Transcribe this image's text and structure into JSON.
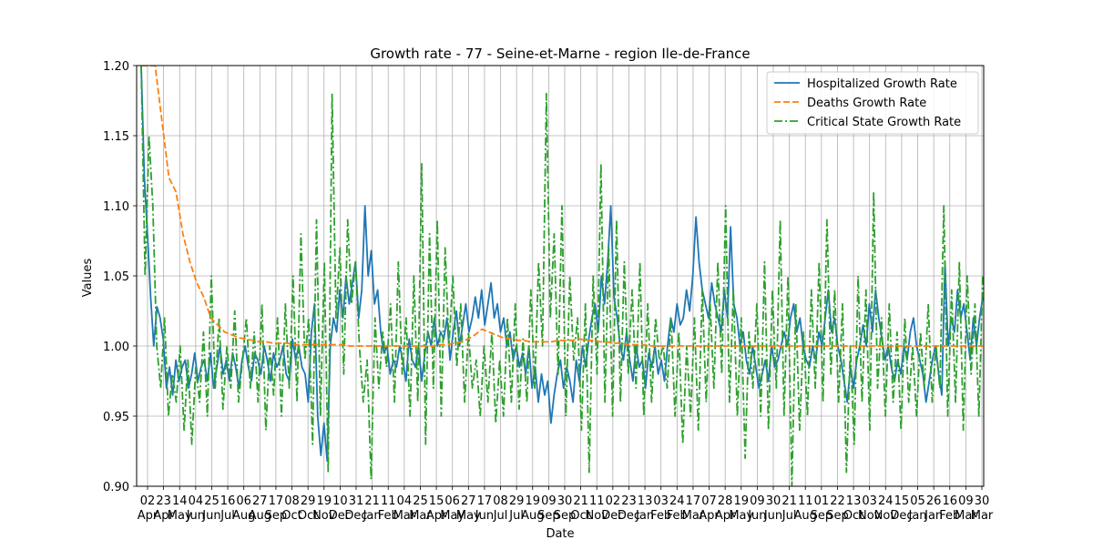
{
  "chart_data": {
    "type": "line",
    "title": "Growth rate - 77 - Seine-et-Marne - region Ile-de-France",
    "xlabel": "Date",
    "ylabel": "Values",
    "ylim": [
      0.9,
      1.2
    ],
    "yticks": [
      0.9,
      0.95,
      1.0,
      1.05,
      1.1,
      1.15,
      1.2
    ],
    "grid": true,
    "legend_position": "top-right",
    "x_tick_labels": [
      {
        "day": "02",
        "month": "Apr"
      },
      {
        "day": "23",
        "month": "Apr"
      },
      {
        "day": "14",
        "month": "May"
      },
      {
        "day": "04",
        "month": "Jun"
      },
      {
        "day": "25",
        "month": "Jun"
      },
      {
        "day": "16",
        "month": "Jul"
      },
      {
        "day": "06",
        "month": "Aug"
      },
      {
        "day": "27",
        "month": "Aug"
      },
      {
        "day": "17",
        "month": "Sep"
      },
      {
        "day": "08",
        "month": "Oct"
      },
      {
        "day": "29",
        "month": "Oct"
      },
      {
        "day": "19",
        "month": "Nov"
      },
      {
        "day": "10",
        "month": "Dec"
      },
      {
        "day": "31",
        "month": "Dec"
      },
      {
        "day": "21",
        "month": "Jan"
      },
      {
        "day": "11",
        "month": "Feb"
      },
      {
        "day": "04",
        "month": "Mar"
      },
      {
        "day": "25",
        "month": "Mar"
      },
      {
        "day": "15",
        "month": "Apr"
      },
      {
        "day": "06",
        "month": "May"
      },
      {
        "day": "27",
        "month": "May"
      },
      {
        "day": "17",
        "month": "Jun"
      },
      {
        "day": "08",
        "month": "Jul"
      },
      {
        "day": "29",
        "month": "Jul"
      },
      {
        "day": "19",
        "month": "Aug"
      },
      {
        "day": "09",
        "month": "Sep"
      },
      {
        "day": "30",
        "month": "Sep"
      },
      {
        "day": "21",
        "month": "Oct"
      },
      {
        "day": "11",
        "month": "Nov"
      },
      {
        "day": "02",
        "month": "Dec"
      },
      {
        "day": "23",
        "month": "Dec"
      },
      {
        "day": "13",
        "month": "Jan"
      },
      {
        "day": "03",
        "month": "Feb"
      },
      {
        "day": "24",
        "month": "Feb"
      },
      {
        "day": "17",
        "month": "Mar"
      },
      {
        "day": "07",
        "month": "Apr"
      },
      {
        "day": "28",
        "month": "Apr"
      },
      {
        "day": "19",
        "month": "May"
      },
      {
        "day": "09",
        "month": "Jun"
      },
      {
        "day": "30",
        "month": "Jun"
      },
      {
        "day": "21",
        "month": "Jul"
      },
      {
        "day": "11",
        "month": "Aug"
      },
      {
        "day": "01",
        "month": "Sep"
      },
      {
        "day": "22",
        "month": "Sep"
      },
      {
        "day": "13",
        "month": "Oct"
      },
      {
        "day": "03",
        "month": "Nov"
      },
      {
        "day": "24",
        "month": "Nov"
      },
      {
        "day": "15",
        "month": "Dec"
      },
      {
        "day": "05",
        "month": "Jan"
      },
      {
        "day": "26",
        "month": "Jan"
      },
      {
        "day": "16",
        "month": "Feb"
      },
      {
        "day": "09",
        "month": "Mar"
      },
      {
        "day": "30",
        "month": "Mar"
      }
    ],
    "series": [
      {
        "name": "Hospitalized Growth Rate",
        "color": "#1f77b4",
        "style": "solid",
        "values": [
          1.2,
          1.12,
          1.08,
          1.035,
          1.0,
          1.028,
          1.02,
          1.005,
          0.97,
          0.985,
          0.965,
          0.99,
          0.975,
          0.985,
          0.99,
          0.97,
          0.98,
          0.995,
          0.975,
          0.985,
          0.99,
          0.975,
          0.995,
          0.97,
          0.985,
          1.0,
          0.98,
          0.99,
          0.975,
          0.995,
          0.985,
          0.97,
          0.99,
          1.0,
          0.985,
          0.975,
          0.995,
          0.99,
          0.98,
          1.0,
          0.99,
          0.975,
          0.995,
          0.985,
          0.99,
          1.0,
          0.98,
          0.975,
          1.005,
          0.99,
          1.0,
          0.985,
          0.98,
          0.96,
          1.01,
          1.03,
          0.95,
          0.922,
          0.945,
          0.918,
          1.0,
          1.02,
          1.01,
          1.04,
          1.02,
          1.05,
          1.03,
          1.045,
          1.06,
          1.02,
          1.04,
          1.1,
          1.05,
          1.068,
          1.03,
          1.04,
          1.01,
          0.995,
          1.0,
          0.98,
          0.99,
          0.985,
          1.0,
          0.99,
          0.975,
          1.005,
          0.99,
          0.985,
          1.0,
          0.975,
          0.995,
          1.01,
          1.0,
          1.02,
          1.0,
          1.01,
          1.005,
          1.02,
          0.99,
          1.01,
          1.025,
          1.0,
          1.015,
          1.03,
          1.01,
          1.02,
          1.035,
          1.02,
          1.04,
          1.015,
          1.03,
          1.045,
          1.02,
          1.03,
          1.01,
          1.02,
          1.0,
          1.01,
          0.99,
          1.0,
          0.985,
          0.995,
          0.98,
          1.0,
          0.97,
          0.985,
          0.96,
          0.98,
          0.965,
          0.975,
          0.945,
          0.965,
          0.98,
          0.99,
          0.97,
          0.985,
          0.975,
          0.96,
          0.99,
          0.975,
          1.0,
          0.985,
          1.005,
          1.02,
          1.03,
          1.01,
          1.05,
          1.03,
          1.06,
          1.1,
          1.035,
          1.02,
          1.0,
          0.99,
          1.01,
          0.99,
          0.975,
          1.0,
          0.985,
          0.99,
          0.97,
          0.995,
          0.985,
          1.0,
          0.98,
          0.99,
          0.975,
          1.0,
          1.02,
          1.01,
          1.03,
          1.015,
          1.02,
          1.04,
          1.025,
          1.05,
          1.092,
          1.06,
          1.04,
          1.03,
          1.02,
          1.045,
          1.03,
          1.02,
          1.01,
          1.04,
          1.02,
          1.085,
          1.03,
          1.02,
          1.0,
          1.01,
          0.99,
          0.98,
          1.0,
          0.985,
          0.97,
          0.98,
          0.99,
          0.975,
          1.0,
          0.985,
          0.99,
          1.0,
          1.01,
          1.0,
          1.02,
          1.03,
          1.01,
          1.02,
          1.0,
          0.99,
          0.985,
          1.0,
          0.99,
          1.01,
          1.0,
          1.02,
          1.04,
          1.01,
          1.02,
          1.0,
          0.99,
          0.975,
          0.96,
          0.985,
          0.97,
          0.99,
          1.0,
          1.015,
          1.0,
          1.03,
          1.01,
          1.04,
          1.02,
          1.005,
          0.99,
          1.0,
          0.985,
          0.975,
          0.99,
          0.98,
          1.0,
          0.99,
          1.01,
          1.02,
          1.0,
          0.99,
          0.98,
          0.96,
          0.975,
          0.99,
          1.0,
          0.98,
          0.965,
          1.06,
          1.0,
          1.02,
          1.01,
          1.04,
          1.02,
          1.03,
          1.01,
          0.99,
          1.02,
          1.0,
          1.02,
          1.035
        ]
      },
      {
        "name": "Deaths Growth Rate",
        "color": "#ff7f0e",
        "style": "dashed",
        "values": [
          1.2,
          1.2,
          1.2,
          1.16,
          1.12,
          1.11,
          1.08,
          1.06,
          1.045,
          1.035,
          1.02,
          1.015,
          1.01,
          1.008,
          1.006,
          1.005,
          1.004,
          1.003,
          1.003,
          1.002,
          1.002,
          1.002,
          1.001,
          1.001,
          1.001,
          1.001,
          1.001,
          1.001,
          1.001,
          1.001,
          1.0,
          1.0,
          1.0,
          1.0,
          1.0,
          1.0,
          1.0,
          1.0,
          1.0,
          1.0,
          1.0,
          1.0,
          1.0,
          1.001,
          1.001,
          1.002,
          1.003,
          1.005,
          1.008,
          1.012,
          1.01,
          1.008,
          1.006,
          1.005,
          1.004,
          1.004,
          1.003,
          1.003,
          1.003,
          1.003,
          1.004,
          1.004,
          1.004,
          1.005,
          1.004,
          1.004,
          1.003,
          1.003,
          1.002,
          1.002,
          1.001,
          1.001,
          1.001,
          1.0,
          1.0,
          1.0,
          1.0,
          1.0,
          1.0,
          1.0,
          1.0,
          1.0,
          1.0,
          1.0,
          1.0,
          1.0,
          1.0,
          1.0,
          1.0,
          1.0,
          1.0,
          1.0,
          1.0,
          1.0,
          1.0,
          1.0,
          1.0,
          1.0,
          1.0,
          1.0,
          1.0,
          1.0,
          1.0,
          1.0,
          1.0,
          1.0,
          1.0,
          1.0,
          1.0,
          1.0,
          1.0,
          1.0,
          1.0,
          1.0,
          1.0,
          1.0,
          1.0,
          1.0,
          1.0,
          1.0,
          1.0,
          1.0
        ]
      },
      {
        "name": "Critical State Growth Rate",
        "color": "#2ca02c",
        "style": "dashdot",
        "values": [
          1.2,
          1.05,
          1.15,
          1.1,
          1.0,
          0.97,
          1.02,
          0.95,
          0.98,
          0.96,
          1.0,
          0.94,
          0.99,
          0.93,
          0.985,
          0.96,
          1.01,
          0.95,
          1.05,
          0.97,
          1.02,
          0.955,
          1.0,
          0.97,
          1.025,
          0.96,
          0.99,
          1.02,
          0.97,
          1.01,
          0.96,
          1.03,
          0.94,
          1.0,
          0.965,
          1.02,
          0.95,
          1.03,
          0.97,
          1.05,
          0.96,
          1.08,
          0.99,
          1.02,
          0.93,
          1.09,
          0.95,
          1.06,
          0.91,
          1.18,
          1.02,
          1.07,
          0.98,
          1.09,
          1.03,
          1.06,
          1.0,
          0.96,
          0.99,
          0.905,
          1.02,
          0.97,
          1.01,
          0.985,
          1.03,
          0.96,
          1.06,
          0.98,
          1.02,
          0.95,
          1.05,
          0.96,
          1.13,
          0.93,
          1.08,
          0.97,
          1.09,
          0.95,
          1.07,
          1.0,
          1.05,
          0.985,
          1.03,
          0.96,
          1.01,
          0.97,
          0.99,
          0.95,
          1.0,
          0.96,
          1.01,
          0.945,
          0.99,
          0.95,
          1.02,
          0.96,
          1.03,
          0.955,
          1.005,
          0.96,
          1.04,
          0.97,
          1.06,
          1.0,
          1.18,
          1.02,
          1.08,
          0.98,
          1.1,
          0.95,
          1.05,
          0.99,
          1.02,
          0.94,
          1.03,
          0.91,
          1.05,
          0.98,
          1.13,
          0.96,
          1.07,
          0.95,
          1.09,
          0.96,
          1.06,
          0.98,
          1.04,
          0.97,
          1.06,
          0.95,
          1.03,
          0.96,
          1.02,
          0.99,
          1.0,
          0.97,
          1.02,
          0.95,
          1.01,
          0.93,
          1.0,
          0.95,
          1.02,
          0.94,
          1.04,
          0.96,
          1.03,
          0.97,
          1.06,
          0.98,
          1.1,
          0.96,
          1.04,
          0.95,
          1.02,
          0.92,
          1.01,
          0.97,
          1.03,
          0.95,
          1.06,
          0.94,
          1.04,
          0.97,
          1.09,
          0.95,
          1.05,
          0.9,
          1.03,
          0.94,
          1.01,
          0.95,
          1.04,
          0.97,
          1.06,
          0.96,
          1.09,
          0.98,
          1.04,
          0.96,
          1.03,
          0.91,
          1.0,
          0.93,
          1.05,
          0.96,
          1.04,
          0.94,
          1.11,
          0.97,
          1.02,
          0.95,
          1.03,
          0.96,
          1.01,
          0.94,
          1.02,
          0.96,
          1.0,
          0.95,
          1.01,
          0.97,
          1.03,
          0.96,
          1.0,
          0.97,
          1.1,
          0.95,
          1.04,
          0.96,
          1.06,
          0.94,
          1.05,
          0.98,
          1.03,
          0.95,
          1.05
        ]
      }
    ]
  }
}
